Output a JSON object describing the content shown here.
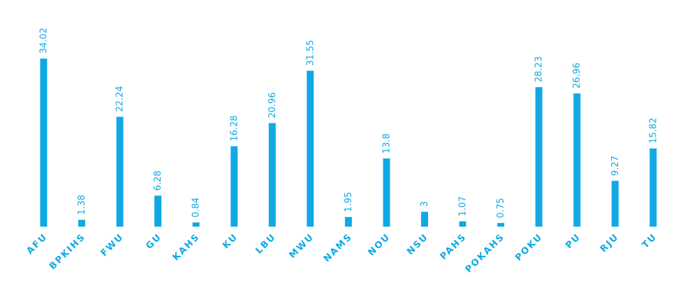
{
  "chart_data": {
    "type": "bar",
    "categories": [
      "AFU",
      "BPKIHS",
      "FWU",
      "GU",
      "KAHS",
      "KU",
      "LBU",
      "MWU",
      "NAMS",
      "NOU",
      "NSU",
      "PAHS",
      "POKAHS",
      "POKU",
      "PU",
      "RJU",
      "TU"
    ],
    "values": [
      34.02,
      1.38,
      22.24,
      6.28,
      0.84,
      16.28,
      20.96,
      31.55,
      1.95,
      13.8,
      3,
      1.07,
      0.75,
      28.23,
      26.96,
      9.27,
      15.82
    ],
    "value_labels": [
      "34.02",
      "1.38",
      "22.24",
      "6.28",
      "0.84",
      "16.28",
      "20.96",
      "31.55",
      "1.95",
      "13.8",
      "3",
      "1.07",
      "0.75",
      "28.23",
      "26.96",
      "9.27",
      "15.82"
    ],
    "title": "",
    "xlabel": "",
    "ylabel": "",
    "ylim": [
      0,
      34.02
    ],
    "grid": false,
    "legend": "none",
    "color": "#10a9e6"
  }
}
